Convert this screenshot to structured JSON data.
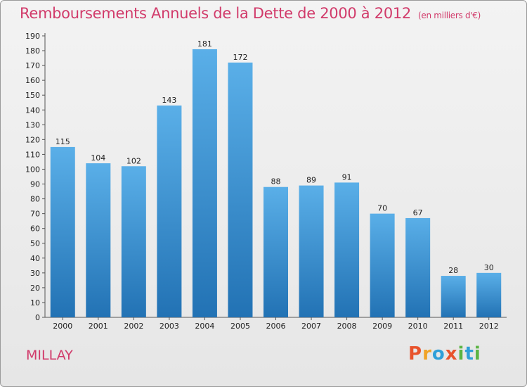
{
  "title": "Remboursements Annuels de la Dette de 2000 à 2012",
  "unit": "(en milliers d'€)",
  "commune": "MILLAY",
  "brand": "Proxiti",
  "colors": {
    "title": "#d13a6a",
    "bar_top": "#5aafe8",
    "bar_bottom": "#2272b4",
    "brand_letters": [
      "#e8532c",
      "#f0a428",
      "#2f9fd8",
      "#e8532c",
      "#5bb443",
      "#2f9fd8",
      "#5bb443"
    ]
  },
  "chart_data": {
    "type": "bar",
    "categories": [
      "2000",
      "2001",
      "2002",
      "2003",
      "2004",
      "2005",
      "2006",
      "2007",
      "2008",
      "2009",
      "2010",
      "2011",
      "2012"
    ],
    "values": [
      115,
      104,
      102,
      143,
      181,
      172,
      88,
      89,
      91,
      70,
      67,
      28,
      30
    ],
    "ylim": [
      0,
      190
    ],
    "yticks": [
      0,
      10,
      20,
      30,
      40,
      50,
      60,
      70,
      80,
      90,
      100,
      110,
      120,
      130,
      140,
      150,
      160,
      170,
      180,
      190
    ],
    "grid": false,
    "data_labels": true
  }
}
